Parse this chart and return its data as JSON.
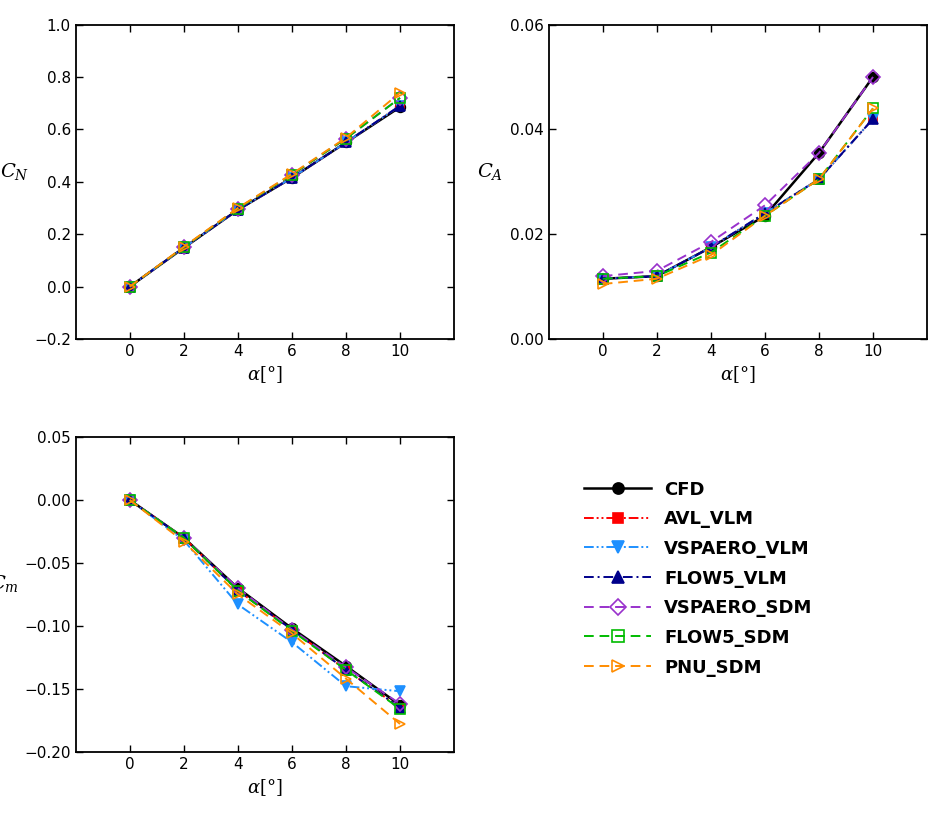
{
  "alpha": [
    0,
    2,
    4,
    6,
    8,
    10
  ],
  "CN": {
    "CFD": [
      0.0,
      0.148,
      0.293,
      0.415,
      0.55,
      0.685
    ],
    "AVL_VLM": [
      0.0,
      0.148,
      0.293,
      0.415,
      0.55,
      0.69
    ],
    "VSPAERO_VLM": [
      0.0,
      0.148,
      0.293,
      0.415,
      0.55,
      0.69
    ],
    "FLOW5_VLM": [
      0.0,
      0.148,
      0.293,
      0.415,
      0.55,
      0.69
    ],
    "VSPAERO_SDM": [
      0.0,
      0.15,
      0.298,
      0.427,
      0.565,
      0.72
    ],
    "FLOW5_SDM": [
      0.0,
      0.15,
      0.298,
      0.427,
      0.565,
      0.72
    ],
    "PNU_SDM": [
      0.0,
      0.152,
      0.3,
      0.43,
      0.568,
      0.74
    ]
  },
  "CA": {
    "CFD": [
      0.0115,
      0.012,
      0.0175,
      0.0235,
      0.0355,
      0.05
    ],
    "AVL_VLM": [
      0.0115,
      0.012,
      0.0175,
      0.024,
      0.0305,
      0.042
    ],
    "VSPAERO_VLM": [
      0.0115,
      0.012,
      0.0175,
      0.024,
      0.0305,
      0.042
    ],
    "FLOW5_VLM": [
      0.0115,
      0.012,
      0.0175,
      0.024,
      0.0305,
      0.042
    ],
    "VSPAERO_SDM": [
      0.012,
      0.013,
      0.0185,
      0.0255,
      0.0355,
      0.05
    ],
    "FLOW5_SDM": [
      0.0115,
      0.012,
      0.0165,
      0.0235,
      0.0305,
      0.044
    ],
    "PNU_SDM": [
      0.0105,
      0.0115,
      0.016,
      0.0235,
      0.0305,
      0.044
    ]
  },
  "Cm": {
    "CFD": [
      0.0,
      -0.03,
      -0.07,
      -0.102,
      -0.132,
      -0.163
    ],
    "AVL_VLM": [
      0.0,
      -0.03,
      -0.072,
      -0.103,
      -0.135,
      -0.165
    ],
    "VSPAERO_VLM": [
      0.0,
      -0.032,
      -0.083,
      -0.113,
      -0.148,
      -0.152
    ],
    "FLOW5_VLM": [
      0.0,
      -0.03,
      -0.072,
      -0.103,
      -0.135,
      -0.165
    ],
    "VSPAERO_SDM": [
      0.0,
      -0.03,
      -0.07,
      -0.103,
      -0.133,
      -0.162
    ],
    "FLOW5_SDM": [
      0.0,
      -0.03,
      -0.072,
      -0.104,
      -0.135,
      -0.166
    ],
    "PNU_SDM": [
      0.0,
      -0.033,
      -0.075,
      -0.106,
      -0.142,
      -0.178
    ]
  },
  "series": [
    "CFD",
    "AVL_VLM",
    "VSPAERO_VLM",
    "FLOW5_VLM",
    "VSPAERO_SDM",
    "FLOW5_SDM",
    "PNU_SDM"
  ],
  "colors": {
    "CFD": "#000000",
    "AVL_VLM": "#ff0000",
    "VSPAERO_VLM": "#1e90ff",
    "FLOW5_VLM": "#00008b",
    "VSPAERO_SDM": "#9932cc",
    "FLOW5_SDM": "#00bb00",
    "PNU_SDM": "#ff8c00"
  },
  "markers": {
    "CFD": "o",
    "AVL_VLM": "s",
    "VSPAERO_VLM": "v",
    "FLOW5_VLM": "^",
    "VSPAERO_SDM": "D",
    "FLOW5_SDM": "s",
    "PNU_SDM": ">"
  },
  "markerfilled": {
    "CFD": true,
    "AVL_VLM": true,
    "VSPAERO_VLM": true,
    "FLOW5_VLM": true,
    "VSPAERO_SDM": false,
    "FLOW5_SDM": false,
    "PNU_SDM": false
  },
  "markersizes": {
    "CFD": 7,
    "AVL_VLM": 6,
    "VSPAERO_VLM": 7,
    "FLOW5_VLM": 7,
    "VSPAERO_SDM": 7,
    "FLOW5_SDM": 7,
    "PNU_SDM": 7
  },
  "linewidths": {
    "CFD": 1.8,
    "AVL_VLM": 1.4,
    "VSPAERO_VLM": 1.4,
    "FLOW5_VLM": 1.4,
    "VSPAERO_SDM": 1.4,
    "FLOW5_SDM": 1.4,
    "PNU_SDM": 1.4
  },
  "CN_ylim": [
    -0.2,
    1.0
  ],
  "CA_ylim": [
    0.0,
    0.06
  ],
  "Cm_ylim": [
    -0.2,
    0.05
  ],
  "xlim": [
    -2,
    12
  ],
  "CN_yticks": [
    -0.2,
    0.0,
    0.2,
    0.4,
    0.6,
    0.8,
    1.0
  ],
  "CA_yticks": [
    0.0,
    0.02,
    0.04,
    0.06
  ],
  "Cm_yticks": [
    -0.2,
    -0.15,
    -0.1,
    -0.05,
    0.0,
    0.05
  ],
  "xticks": [
    0,
    2,
    4,
    6,
    8,
    10
  ],
  "legend_names": [
    "CFD",
    "AVL_VLM",
    "VSPAERO_VLM",
    "FLOW5_VLM",
    "VSPAERO_SDM",
    "FLOW5_SDM",
    "PNU_SDM"
  ]
}
